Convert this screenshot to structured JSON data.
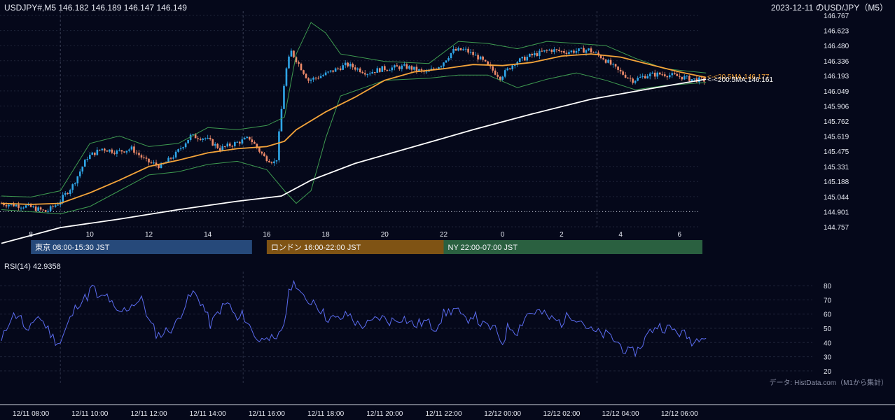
{
  "header": {
    "symbol_line": "USDJPY#,M5 146.182 146.189 146.147 146.149",
    "date_title": "2023-12-11 のUSD/JPY（M5）"
  },
  "colors": {
    "background": "#05081a",
    "grid": "#1e2338",
    "up_candle": "#2fa6e8",
    "down_candle": "#ef8b6a",
    "ma_short": "#f4a43a",
    "ma_long": "#ffffff",
    "bollinger": "#3e9a50",
    "rsi": "#5b6cf0",
    "tokyo": "#26497a",
    "london": "#7f5314",
    "newyork": "#2a6040"
  },
  "labels": {
    "ma_short_label": "<-<20.5MA,146.177",
    "ma_long_label": "<-<200.5MA,146.161",
    "rsi_title": "RSI(14) 42.9358",
    "source": "データ: HistData.com（M1から集計）"
  },
  "sessions": [
    {
      "name": "東京 08:00-15:30 JST",
      "start": 8,
      "end": 15.5,
      "color": "#26497a"
    },
    {
      "name": "ロンドン 16:00-22:00 JST",
      "start": 16,
      "end": 22,
      "color": "#7f5314"
    },
    {
      "name": "NY 22:00-07:00 JST",
      "start": 22,
      "end": 31,
      "color": "#2a6040"
    }
  ],
  "chart_data": [
    {
      "type": "candlestick",
      "title": "USDJPY#,M5",
      "x_range_hours": [
        7.0,
        30.9
      ],
      "ylim": [
        144.757,
        146.767
      ],
      "y_ticks": [
        "146.767",
        "146.623",
        "146.480",
        "146.336",
        "146.193",
        "146.049",
        "145.906",
        "145.762",
        "145.619",
        "145.475",
        "145.331",
        "145.188",
        "145.044",
        "144.901",
        "144.757"
      ],
      "x_ticks": [
        {
          "h": 8,
          "label": "8"
        },
        {
          "h": 10,
          "label": "10"
        },
        {
          "h": 12,
          "label": "12"
        },
        {
          "h": 14,
          "label": "14"
        },
        {
          "h": 16,
          "label": "16"
        },
        {
          "h": 18,
          "label": "18"
        },
        {
          "h": 20,
          "label": "20"
        },
        {
          "h": 22,
          "label": "22"
        },
        {
          "h": 24,
          "label": "0"
        },
        {
          "h": 26,
          "label": "2"
        },
        {
          "h": 28,
          "label": "4"
        },
        {
          "h": 30,
          "label": "6"
        }
      ],
      "reference_line": 144.901,
      "price_points": [
        [
          7.0,
          144.98
        ],
        [
          8.0,
          144.95
        ],
        [
          8.6,
          144.9
        ],
        [
          9.0,
          144.98
        ],
        [
          9.5,
          145.15
        ],
        [
          10.0,
          145.42
        ],
        [
          10.5,
          145.5
        ],
        [
          11.0,
          145.47
        ],
        [
          11.5,
          145.5
        ],
        [
          12.0,
          145.38
        ],
        [
          12.5,
          145.33
        ],
        [
          13.0,
          145.45
        ],
        [
          13.5,
          145.62
        ],
        [
          14.0,
          145.6
        ],
        [
          14.5,
          145.5
        ],
        [
          15.0,
          145.55
        ],
        [
          15.5,
          145.6
        ],
        [
          16.0,
          145.42
        ],
        [
          16.4,
          145.36
        ],
        [
          16.7,
          146.2
        ],
        [
          16.9,
          146.43
        ],
        [
          17.5,
          146.15
        ],
        [
          18.0,
          146.2
        ],
        [
          18.8,
          146.3
        ],
        [
          19.5,
          146.22
        ],
        [
          20.0,
          146.26
        ],
        [
          20.8,
          146.28
        ],
        [
          21.5,
          146.22
        ],
        [
          22.0,
          146.3
        ],
        [
          22.4,
          146.43
        ],
        [
          22.8,
          146.44
        ],
        [
          23.3,
          146.36
        ],
        [
          24.0,
          146.18
        ],
        [
          24.5,
          146.32
        ],
        [
          25.0,
          146.38
        ],
        [
          25.7,
          146.44
        ],
        [
          26.2,
          146.42
        ],
        [
          27.0,
          146.44
        ],
        [
          27.5,
          146.36
        ],
        [
          28.0,
          146.24
        ],
        [
          28.5,
          146.15
        ],
        [
          29.0,
          146.2
        ],
        [
          29.5,
          146.21
        ],
        [
          30.0,
          146.19
        ],
        [
          30.5,
          146.16
        ],
        [
          30.9,
          146.15
        ]
      ],
      "ma_short_points": [
        [
          7.0,
          144.98
        ],
        [
          8.0,
          144.97
        ],
        [
          9.0,
          144.98
        ],
        [
          10.0,
          145.08
        ],
        [
          11.0,
          145.2
        ],
        [
          12.0,
          145.33
        ],
        [
          13.0,
          145.39
        ],
        [
          14.0,
          145.46
        ],
        [
          15.0,
          145.5
        ],
        [
          16.0,
          145.52
        ],
        [
          16.6,
          145.57
        ],
        [
          17.0,
          145.68
        ],
        [
          18.0,
          145.85
        ],
        [
          19.0,
          145.99
        ],
        [
          20.0,
          146.15
        ],
        [
          21.0,
          146.23
        ],
        [
          22.0,
          146.26
        ],
        [
          23.0,
          146.3
        ],
        [
          24.0,
          146.29
        ],
        [
          25.0,
          146.32
        ],
        [
          26.0,
          146.38
        ],
        [
          27.0,
          146.4
        ],
        [
          28.0,
          146.37
        ],
        [
          29.0,
          146.3
        ],
        [
          30.0,
          146.23
        ],
        [
          30.9,
          146.177
        ]
      ],
      "ma_long_points": [
        [
          7.0,
          144.6
        ],
        [
          9.0,
          144.75
        ],
        [
          11.0,
          144.83
        ],
        [
          13.0,
          144.92
        ],
        [
          15.0,
          145.0
        ],
        [
          16.5,
          145.05
        ],
        [
          17.5,
          145.2
        ],
        [
          19.0,
          145.36
        ],
        [
          21.0,
          145.52
        ],
        [
          23.0,
          145.68
        ],
        [
          25.0,
          145.83
        ],
        [
          27.0,
          145.97
        ],
        [
          29.0,
          146.07
        ],
        [
          30.9,
          146.161
        ]
      ],
      "bollinger_upper_points": [
        [
          7.0,
          145.05
        ],
        [
          8.0,
          145.04
        ],
        [
          9.0,
          145.1
        ],
        [
          10.0,
          145.55
        ],
        [
          11.0,
          145.62
        ],
        [
          12.0,
          145.52
        ],
        [
          13.0,
          145.55
        ],
        [
          14.0,
          145.7
        ],
        [
          15.0,
          145.68
        ],
        [
          16.0,
          145.72
        ],
        [
          16.6,
          145.8
        ],
        [
          17.0,
          146.4
        ],
        [
          17.5,
          146.7
        ],
        [
          18.0,
          146.6
        ],
        [
          18.5,
          146.4
        ],
        [
          20.0,
          146.33
        ],
        [
          21.5,
          146.31
        ],
        [
          22.5,
          146.52
        ],
        [
          23.5,
          146.5
        ],
        [
          24.5,
          146.45
        ],
        [
          25.5,
          146.52
        ],
        [
          26.5,
          146.5
        ],
        [
          27.5,
          146.48
        ],
        [
          28.5,
          146.36
        ],
        [
          29.5,
          146.26
        ],
        [
          30.9,
          146.22
        ]
      ],
      "bollinger_lower_points": [
        [
          7.0,
          144.92
        ],
        [
          8.0,
          144.9
        ],
        [
          9.0,
          144.88
        ],
        [
          10.0,
          144.95
        ],
        [
          11.0,
          145.1
        ],
        [
          12.0,
          145.25
        ],
        [
          13.0,
          145.28
        ],
        [
          14.0,
          145.35
        ],
        [
          15.0,
          145.38
        ],
        [
          16.0,
          145.3
        ],
        [
          16.6,
          145.1
        ],
        [
          17.0,
          144.98
        ],
        [
          17.5,
          145.1
        ],
        [
          18.0,
          145.6
        ],
        [
          18.5,
          146.0
        ],
        [
          20.0,
          146.15
        ],
        [
          21.5,
          146.17
        ],
        [
          22.5,
          146.2
        ],
        [
          23.5,
          146.2
        ],
        [
          24.5,
          146.08
        ],
        [
          25.5,
          146.16
        ],
        [
          26.5,
          146.22
        ],
        [
          27.5,
          146.15
        ],
        [
          28.5,
          146.06
        ],
        [
          29.5,
          146.1
        ],
        [
          30.9,
          146.13
        ]
      ]
    },
    {
      "type": "line",
      "title": "RSI(14) 42.9358",
      "ylim": [
        15,
        85
      ],
      "y_ticks": [
        80,
        70,
        60,
        50,
        40,
        30,
        20
      ],
      "x_ticks": [
        {
          "h": 8,
          "label": "12/11 08:00"
        },
        {
          "h": 10,
          "label": "12/11 10:00"
        },
        {
          "h": 12,
          "label": "12/11 12:00"
        },
        {
          "h": 14,
          "label": "12/11 14:00"
        },
        {
          "h": 16,
          "label": "12/11 16:00"
        },
        {
          "h": 18,
          "label": "12/11 18:00"
        },
        {
          "h": 20,
          "label": "12/11 20:00"
        },
        {
          "h": 22,
          "label": "12/11 22:00"
        },
        {
          "h": 24,
          "label": "12/12 00:00"
        },
        {
          "h": 26,
          "label": "12/12 02:00"
        },
        {
          "h": 28,
          "label": "12/12 04:00"
        },
        {
          "h": 30,
          "label": "12/12 06:00"
        }
      ],
      "rsi_points": [
        [
          7.0,
          40
        ],
        [
          7.3,
          58
        ],
        [
          7.6,
          60
        ],
        [
          7.9,
          45
        ],
        [
          8.2,
          60
        ],
        [
          8.5,
          52
        ],
        [
          8.8,
          42
        ],
        [
          9.0,
          40
        ],
        [
          9.3,
          55
        ],
        [
          9.6,
          68
        ],
        [
          9.9,
          72
        ],
        [
          10.1,
          80
        ],
        [
          10.3,
          70
        ],
        [
          10.6,
          73
        ],
        [
          10.9,
          60
        ],
        [
          11.2,
          63
        ],
        [
          11.5,
          68
        ],
        [
          11.8,
          70
        ],
        [
          12.0,
          55
        ],
        [
          12.3,
          45
        ],
        [
          12.6,
          48
        ],
        [
          12.9,
          52
        ],
        [
          13.2,
          66
        ],
        [
          13.5,
          75
        ],
        [
          13.8,
          68
        ],
        [
          14.1,
          52
        ],
        [
          14.4,
          63
        ],
        [
          14.7,
          68
        ],
        [
          15.0,
          55
        ],
        [
          15.2,
          60
        ],
        [
          15.5,
          48
        ],
        [
          15.8,
          40
        ],
        [
          16.0,
          47
        ],
        [
          16.3,
          38
        ],
        [
          16.6,
          55
        ],
        [
          16.8,
          80
        ],
        [
          17.0,
          82
        ],
        [
          17.3,
          68
        ],
        [
          17.6,
          70
        ],
        [
          18.0,
          58
        ],
        [
          18.4,
          56
        ],
        [
          18.8,
          60
        ],
        [
          19.1,
          52
        ],
        [
          19.5,
          53
        ],
        [
          19.8,
          58
        ],
        [
          20.2,
          55
        ],
        [
          20.6,
          58
        ],
        [
          21.0,
          52
        ],
        [
          21.4,
          55
        ],
        [
          21.7,
          50
        ],
        [
          22.0,
          60
        ],
        [
          22.4,
          64
        ],
        [
          22.7,
          55
        ],
        [
          23.0,
          60
        ],
        [
          23.3,
          52
        ],
        [
          23.7,
          50
        ],
        [
          24.0,
          40
        ],
        [
          24.2,
          52
        ],
        [
          24.5,
          48
        ],
        [
          24.8,
          60
        ],
        [
          25.2,
          62
        ],
        [
          25.6,
          57
        ],
        [
          26.0,
          54
        ],
        [
          26.3,
          60
        ],
        [
          26.6,
          57
        ],
        [
          27.0,
          48
        ],
        [
          27.3,
          46
        ],
        [
          27.6,
          45
        ],
        [
          28.0,
          38
        ],
        [
          28.3,
          32
        ],
        [
          28.6,
          35
        ],
        [
          28.9,
          45
        ],
        [
          29.2,
          52
        ],
        [
          29.6,
          50
        ],
        [
          29.9,
          48
        ],
        [
          30.2,
          45
        ],
        [
          30.5,
          40
        ],
        [
          30.8,
          48
        ],
        [
          30.9,
          42.9
        ]
      ]
    }
  ]
}
